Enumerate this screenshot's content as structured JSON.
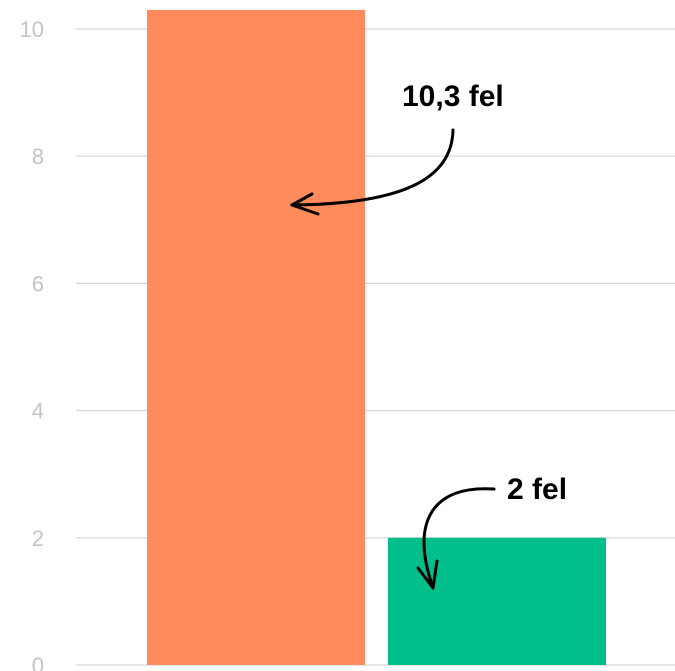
{
  "chart_data": {
    "type": "bar",
    "categories": [
      "",
      ""
    ],
    "values": [
      10.3,
      2
    ],
    "colors": [
      "#FF8A5B",
      "#00BF8A"
    ],
    "ylim": [
      0,
      10.3
    ],
    "yticks": [
      "0",
      "2",
      "4",
      "6",
      "8",
      "10"
    ],
    "ytick_values": [
      0,
      2,
      4,
      6,
      8,
      10
    ],
    "grid": true,
    "annotations": [
      {
        "text": "10,3 fel",
        "bar": 0
      },
      {
        "text": "2 fel",
        "bar": 1
      }
    ]
  }
}
